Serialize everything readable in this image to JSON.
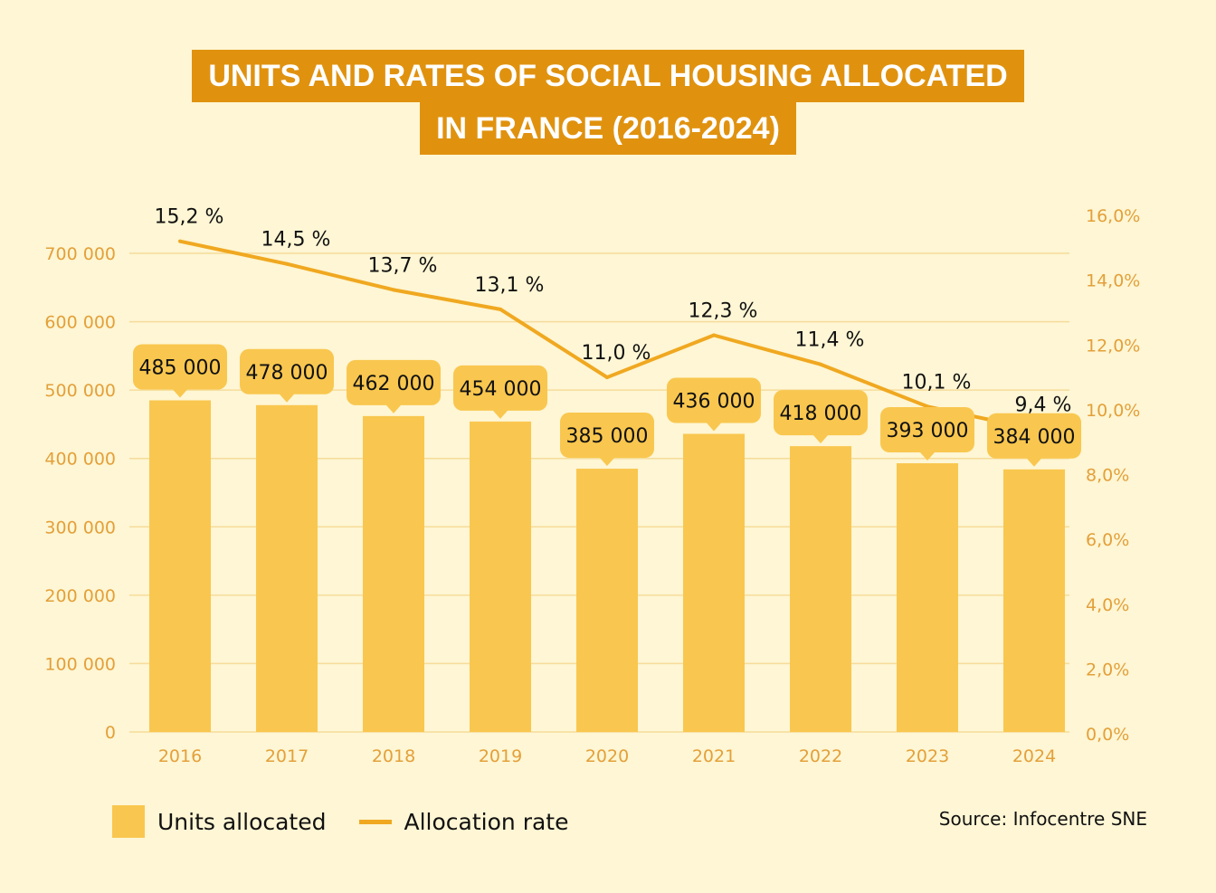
{
  "title_line1": "UNITS AND RATES OF SOCIAL HOUSING ALLOCATED",
  "title_line2": "IN FRANCE (2016-2024)",
  "source": "Source: Infocentre SNE",
  "colors": {
    "background": "#fef6d4",
    "bars": "#f9c74f",
    "line": "#f0a820",
    "title_box": "#e0920f",
    "axis_text": "#e3a03a"
  },
  "chart_data": {
    "type": "bar+line",
    "categories": [
      "2016",
      "2017",
      "2018",
      "2019",
      "2020",
      "2021",
      "2022",
      "2023",
      "2024"
    ],
    "series": [
      {
        "name": "Units allocated",
        "type": "bar",
        "axis": "left",
        "values": [
          485000,
          478000,
          462000,
          454000,
          385000,
          436000,
          418000,
          393000,
          384000
        ],
        "labels": [
          "485 000",
          "478 000",
          "462 000",
          "454 000",
          "385 000",
          "436 000",
          "418 000",
          "393 000",
          "384 000"
        ]
      },
      {
        "name": "Allocation rate",
        "type": "line",
        "axis": "right",
        "values": [
          15.2,
          14.5,
          13.7,
          13.1,
          11.0,
          12.3,
          11.4,
          10.1,
          9.4
        ],
        "labels": [
          "15,2 %",
          "14,5 %",
          "13,7 %",
          "13,1 %",
          "11,0 %",
          "12,3 %",
          "11,4 %",
          "10,1 %",
          "9,4 %"
        ]
      }
    ],
    "left_axis": {
      "ylim": [
        0,
        700000
      ],
      "ticks": [
        "0",
        "100 000",
        "200 000",
        "300 000",
        "400 000",
        "500 000",
        "600 000",
        "700 000"
      ]
    },
    "right_axis": {
      "ylim": [
        0,
        16
      ],
      "ticks": [
        "0,0%",
        "2,0%",
        "4,0%",
        "6,0%",
        "8,0%",
        "10,0%",
        "12,0%",
        "14,0%",
        "16,0%"
      ]
    },
    "grid": true,
    "legend": {
      "placement": "bottom-left",
      "entries": [
        "Units allocated",
        "Allocation rate"
      ]
    }
  }
}
